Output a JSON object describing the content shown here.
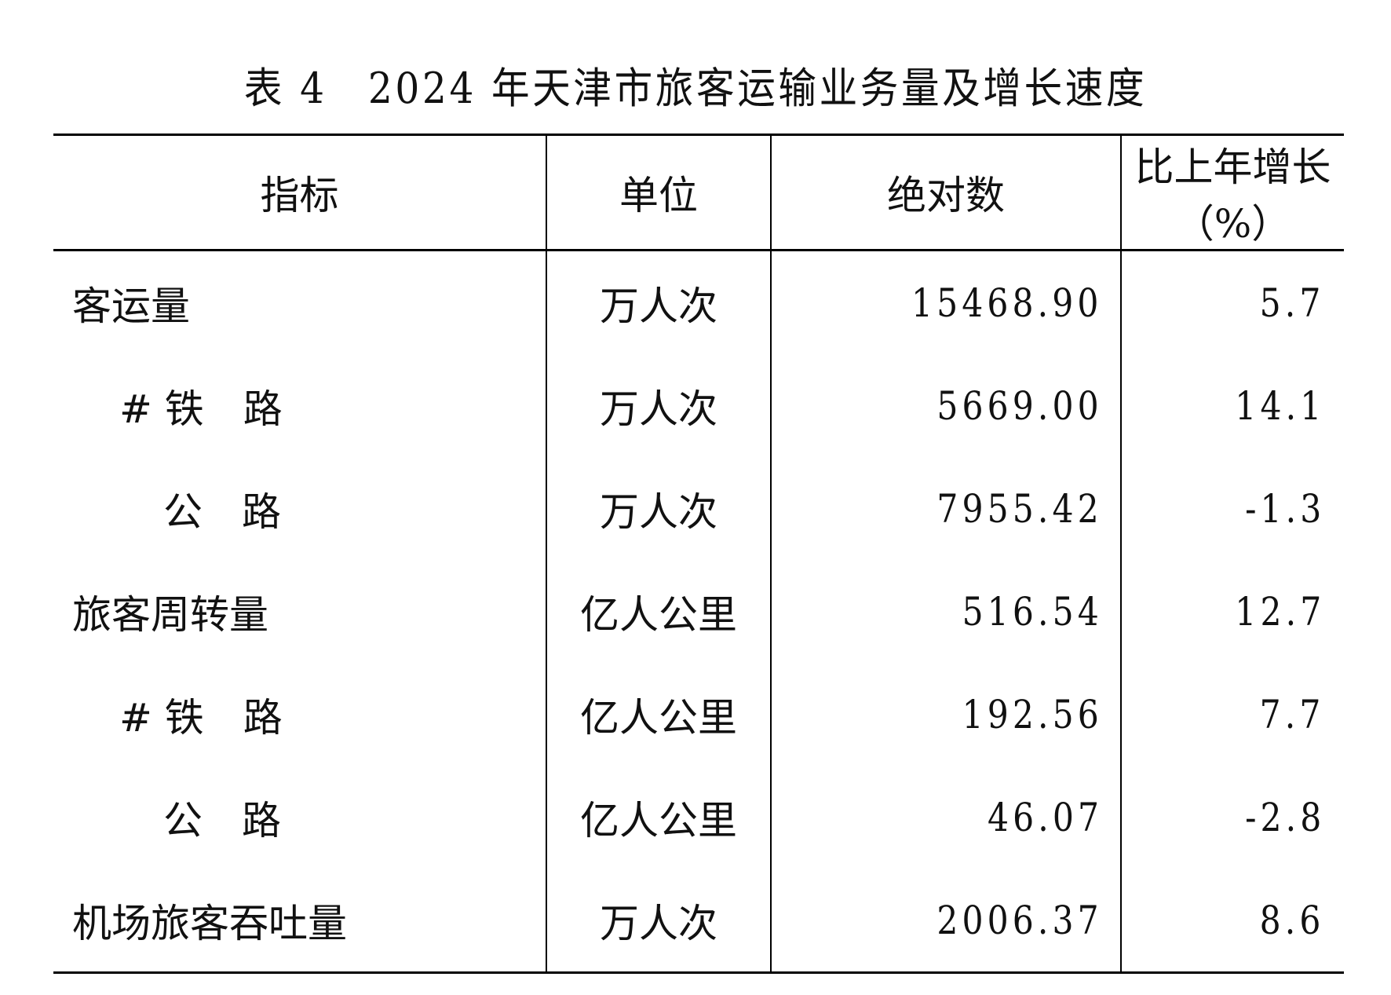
{
  "title": "表 4　2024 年天津市旅客运输业务量及增长速度",
  "table": {
    "headers": [
      "指标",
      "单位",
      "绝对数",
      "比上年增长（%）"
    ],
    "rows": [
      {
        "indicator": "客运量",
        "unit": "万人次",
        "value": "15468.90",
        "growth": "5.7",
        "indent": 0
      },
      {
        "indicator": "# 铁　路",
        "unit": "万人次",
        "value": "5669.00",
        "growth": "14.1",
        "indent": 1
      },
      {
        "indicator": "公　路",
        "unit": "万人次",
        "value": "7955.42",
        "growth": "-1.3",
        "indent": 2
      },
      {
        "indicator": "旅客周转量",
        "unit": "亿人公里",
        "value": "516.54",
        "growth": "12.7",
        "indent": 0
      },
      {
        "indicator": "# 铁　路",
        "unit": "亿人公里",
        "value": "192.56",
        "growth": "7.7",
        "indent": 1
      },
      {
        "indicator": "公　路",
        "unit": "亿人公里",
        "value": "46.07",
        "growth": "-2.8",
        "indent": 2
      },
      {
        "indicator": "机场旅客吞吐量",
        "unit": "万人次",
        "value": "2006.37",
        "growth": "8.6",
        "indent": 0
      }
    ]
  }
}
